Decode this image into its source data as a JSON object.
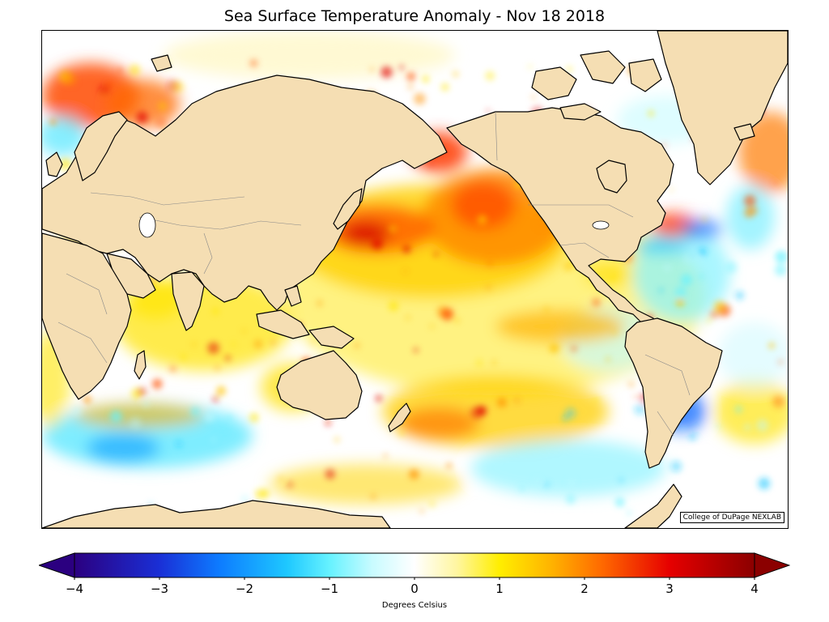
{
  "title": "Sea Surface Temperature Anomaly - Nov 18 2018",
  "credit": "College of DuPage NEXLAB",
  "colorbar": {
    "label": "Degrees Celsius",
    "min": -4,
    "max": 4,
    "ticks": [
      {
        "value": -4,
        "label": "−4"
      },
      {
        "value": -3,
        "label": "−3"
      },
      {
        "value": -2,
        "label": "−2"
      },
      {
        "value": -1,
        "label": "−1"
      },
      {
        "value": 0,
        "label": "0"
      },
      {
        "value": 1,
        "label": "1"
      },
      {
        "value": 2,
        "label": "2"
      },
      {
        "value": 3,
        "label": "3"
      },
      {
        "value": 4,
        "label": "4"
      }
    ],
    "stops": [
      {
        "value": -4,
        "color": "#2b0080"
      },
      {
        "value": -3,
        "color": "#1a2fd6"
      },
      {
        "value": -2.3,
        "color": "#0d7bff"
      },
      {
        "value": -1.5,
        "color": "#1ec8ff"
      },
      {
        "value": -1,
        "color": "#66f2ff"
      },
      {
        "value": -0.5,
        "color": "#c8fbff"
      },
      {
        "value": 0,
        "color": "#ffffff"
      },
      {
        "value": 0.5,
        "color": "#fff6a0"
      },
      {
        "value": 1,
        "color": "#ffee00"
      },
      {
        "value": 1.6,
        "color": "#ffb400"
      },
      {
        "value": 2.2,
        "color": "#ff6a00"
      },
      {
        "value": 3,
        "color": "#e60000"
      },
      {
        "value": 4,
        "color": "#8b0000"
      }
    ],
    "extend": "both"
  },
  "colors": {
    "land": "#f5deb3",
    "coast": "#000000",
    "border": "#888888",
    "ocean_background": "#ffffff"
  }
}
